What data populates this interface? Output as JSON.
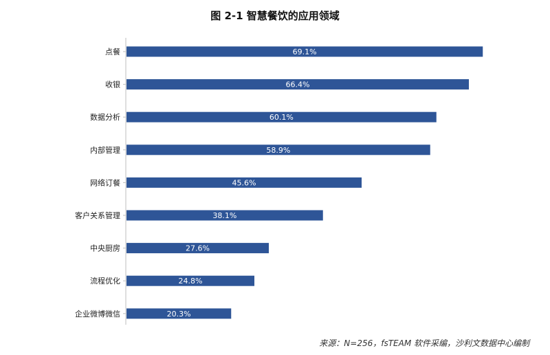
{
  "chart_data": {
    "type": "bar",
    "orientation": "horizontal",
    "title": "图 2-1 智慧餐饮的应用领域",
    "categories": [
      "点餐",
      "收银",
      "数据分析",
      "内部管理",
      "网络订餐",
      "客户关系管理",
      "中央厨房",
      "流程优化",
      "企业微博微信"
    ],
    "values": [
      69.1,
      66.4,
      60.1,
      58.9,
      45.6,
      38.1,
      27.6,
      24.8,
      20.3
    ],
    "value_labels": [
      "69.1%",
      "66.4%",
      "60.1%",
      "58.9%",
      "45.6%",
      "38.1%",
      "27.6%",
      "24.8%",
      "20.3%"
    ],
    "unit": "%",
    "xlim": [
      0,
      80
    ],
    "grid": false,
    "legend": "none",
    "bar_color": "#2e5597",
    "label_color": "#ffffff",
    "source": "来源：N=256，fsTEAM 软件采编，沙利文数据中心编制"
  }
}
